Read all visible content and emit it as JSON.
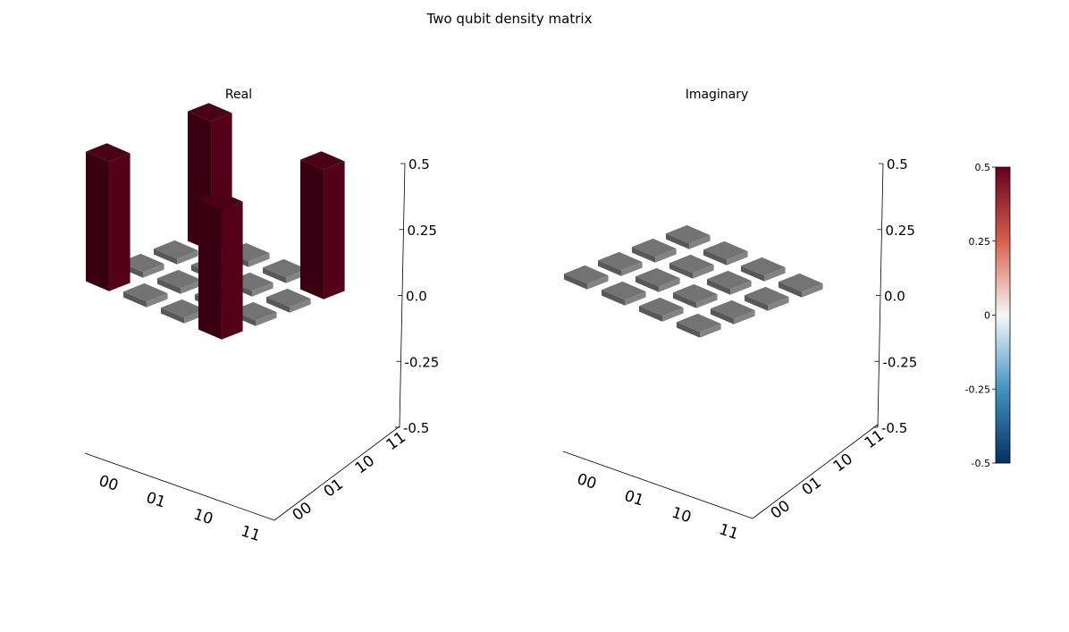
{
  "figure": {
    "title": "Two qubit density matrix"
  },
  "chart_data": [
    {
      "type": "bar3d",
      "title": "Real",
      "basis_labels": [
        "00",
        "01",
        "10",
        "11"
      ],
      "zlim": [
        -0.5,
        0.5
      ],
      "z_ticks": [
        "0.5",
        "0.25",
        "0.0",
        "-0.25",
        "-0.5"
      ],
      "matrix": [
        [
          0.5,
          0.0,
          0.0,
          0.5
        ],
        [
          0.0,
          0.0,
          0.0,
          0.0
        ],
        [
          0.0,
          0.0,
          0.0,
          0.0
        ],
        [
          0.5,
          0.0,
          0.0,
          0.5
        ]
      ]
    },
    {
      "type": "bar3d",
      "title": "Imaginary",
      "basis_labels": [
        "00",
        "01",
        "10",
        "11"
      ],
      "zlim": [
        -0.5,
        0.5
      ],
      "z_ticks": [
        "0.5",
        "0.25",
        "0.0",
        "-0.25",
        "-0.5"
      ],
      "matrix": [
        [
          0.0,
          0.0,
          0.0,
          0.0
        ],
        [
          0.0,
          0.0,
          0.0,
          0.0
        ],
        [
          0.0,
          0.0,
          0.0,
          0.0
        ],
        [
          0.0,
          0.0,
          0.0,
          0.0
        ]
      ]
    }
  ],
  "colorbar": {
    "colormap": "RdBu_r",
    "range": [
      -0.5,
      0.5
    ],
    "ticks": [
      "0.5",
      "0.25",
      "0",
      "-0.25",
      "-0.5"
    ],
    "colors": {
      "max": "#67001f",
      "high": "#d6604d",
      "mid": "#f7f7f7",
      "low": "#4393c3",
      "min": "#053061"
    }
  }
}
